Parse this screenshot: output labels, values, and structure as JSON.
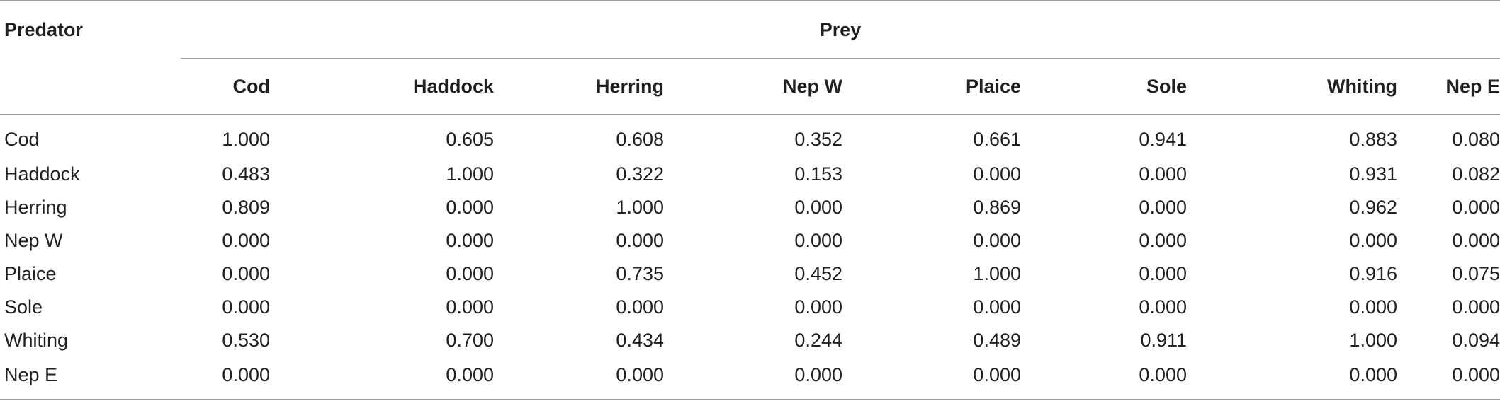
{
  "table": {
    "predator_header": "Predator",
    "prey_header": "Prey",
    "columns": [
      "Cod",
      "Haddock",
      "Herring",
      "Nep W",
      "Plaice",
      "Sole",
      "Whiting",
      "Nep E"
    ],
    "rows": [
      {
        "predator": "Cod",
        "values": [
          "1.000",
          "0.605",
          "0.608",
          "0.352",
          "0.661",
          "0.941",
          "0.883",
          "0.080"
        ]
      },
      {
        "predator": "Haddock",
        "values": [
          "0.483",
          "1.000",
          "0.322",
          "0.153",
          "0.000",
          "0.000",
          "0.931",
          "0.082"
        ]
      },
      {
        "predator": "Herring",
        "values": [
          "0.809",
          "0.000",
          "1.000",
          "0.000",
          "0.869",
          "0.000",
          "0.962",
          "0.000"
        ]
      },
      {
        "predator": "Nep W",
        "values": [
          "0.000",
          "0.000",
          "0.000",
          "0.000",
          "0.000",
          "0.000",
          "0.000",
          "0.000"
        ]
      },
      {
        "predator": "Plaice",
        "values": [
          "0.000",
          "0.000",
          "0.735",
          "0.452",
          "1.000",
          "0.000",
          "0.916",
          "0.075"
        ]
      },
      {
        "predator": "Sole",
        "values": [
          "0.000",
          "0.000",
          "0.000",
          "0.000",
          "0.000",
          "0.000",
          "0.000",
          "0.000"
        ]
      },
      {
        "predator": "Whiting",
        "values": [
          "0.530",
          "0.700",
          "0.434",
          "0.244",
          "0.489",
          "0.911",
          "1.000",
          "0.094"
        ]
      },
      {
        "predator": "Nep E",
        "values": [
          "0.000",
          "0.000",
          "0.000",
          "0.000",
          "0.000",
          "0.000",
          "0.000",
          "0.000"
        ]
      }
    ]
  },
  "colors": {
    "text": "#231f20",
    "rule": "#9a9a9a"
  }
}
